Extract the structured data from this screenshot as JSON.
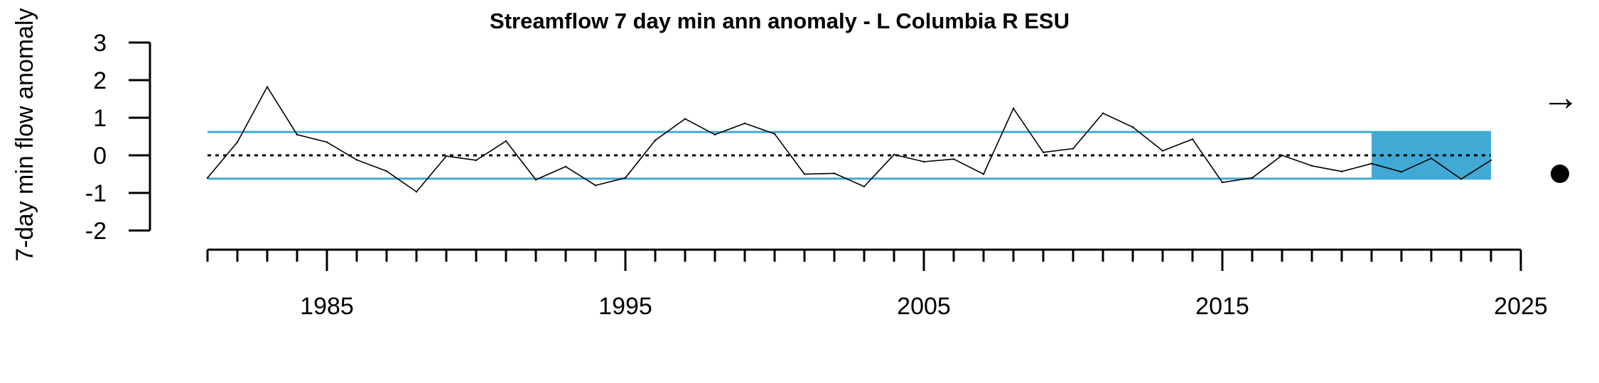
{
  "chart_data": {
    "type": "line",
    "title": "Streamflow 7 day min ann anomaly - L Columbia R ESU",
    "xlabel": "",
    "ylabel": "7-day min flow anomaly",
    "xlim": [
      1981,
      2025
    ],
    "ylim": [
      -2,
      3
    ],
    "y_ticks": [
      "3",
      "2",
      "1",
      "0",
      "-1",
      "-2"
    ],
    "x_tick_labels": [
      "1985",
      "1995",
      "2005",
      "2015",
      "2025"
    ],
    "x_minor_ticks": {
      "start": 1981,
      "end": 2025,
      "step": 1
    },
    "x": [
      1981,
      1982,
      1983,
      1984,
      1985,
      1986,
      1987,
      1988,
      1989,
      1990,
      1991,
      1992,
      1993,
      1994,
      1995,
      1996,
      1997,
      1998,
      1999,
      2000,
      2001,
      2002,
      2003,
      2004,
      2005,
      2006,
      2007,
      2008,
      2009,
      2010,
      2011,
      2012,
      2013,
      2014,
      2015,
      2016,
      2017,
      2018,
      2019,
      2020,
      2021,
      2022,
      2023,
      2024
    ],
    "series": [
      {
        "values": [
          -0.6,
          0.35,
          1.82,
          0.55,
          0.35,
          -0.12,
          -0.42,
          -0.97,
          -0.02,
          -0.13,
          0.38,
          -0.65,
          -0.3,
          -0.8,
          -0.6,
          0.4,
          0.97,
          0.55,
          0.85,
          0.57,
          -0.5,
          -0.48,
          -0.83,
          0.02,
          -0.17,
          -0.1,
          -0.5,
          1.25,
          0.08,
          0.18,
          1.12,
          0.75,
          0.12,
          0.43,
          -0.72,
          -0.6,
          0.0,
          -0.28,
          -0.43,
          -0.22,
          -0.44,
          -0.08,
          -0.63,
          -0.13
        ],
        "color": "#000000"
      }
    ],
    "reference_lines": {
      "mean": 0,
      "upper_sd": 0.62,
      "lower_sd": -0.62,
      "sd_color": "#41a9d4",
      "mean_style": "dotted"
    },
    "highlight_range": {
      "x_start": 2020,
      "x_end": 2024,
      "y_start": -0.62,
      "y_end": 0.62,
      "color": "#41a9d4"
    },
    "trend_symbol": "→",
    "status_symbol": "●"
  }
}
